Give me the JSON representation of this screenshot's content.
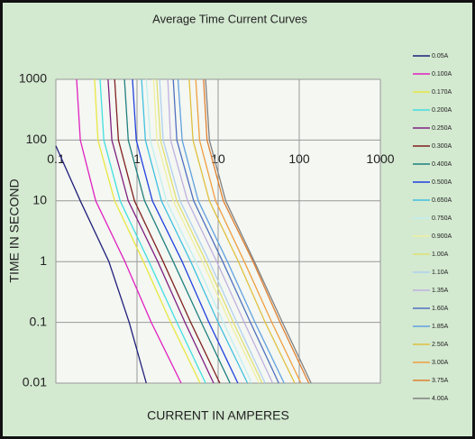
{
  "chart_data": {
    "type": "line",
    "title": "Average Time Current Curves",
    "x_label": "CURRENT IN AMPERES",
    "y_label": "TIME IN SECOND",
    "xscale": "log",
    "yscale": "log",
    "grid": true,
    "legend": "right",
    "xlim": [
      0.1,
      1000
    ],
    "ylim": [
      0.01,
      1000
    ],
    "xticks": [
      0.1,
      1,
      10,
      100,
      1000
    ],
    "yticks": [
      1000,
      100,
      10,
      1,
      0.1,
      0.01
    ],
    "series": [
      {
        "name": "0.05A",
        "color": "#1f1f7a",
        "x": [
          0.1,
          0.2,
          0.45,
          0.8,
          1.3
        ],
        "values": [
          80,
          10,
          1,
          0.1,
          0.01
        ]
      },
      {
        "name": "0.100A",
        "color": "#e020c0",
        "x": [
          0.18,
          0.2,
          0.31,
          0.71,
          1.5,
          3.5
        ],
        "values": [
          1000,
          100,
          10,
          1,
          0.1,
          0.01
        ]
      },
      {
        "name": "0.170A",
        "color": "#e8e840",
        "x": [
          0.3,
          0.33,
          0.53,
          1.2,
          2.6,
          6
        ],
        "values": [
          1000,
          100,
          10,
          1,
          0.1,
          0.01
        ]
      },
      {
        "name": "0.200A",
        "color": "#40e0e0",
        "x": [
          0.35,
          0.39,
          0.62,
          1.4,
          3.1,
          7
        ],
        "values": [
          1000,
          100,
          10,
          1,
          0.1,
          0.01
        ]
      },
      {
        "name": "0.250A",
        "color": "#802080",
        "x": [
          0.44,
          0.49,
          0.78,
          1.8,
          3.9,
          8.8
        ],
        "values": [
          1000,
          100,
          10,
          1,
          0.1,
          0.01
        ]
      },
      {
        "name": "0.300A",
        "color": "#802020",
        "x": [
          0.53,
          0.59,
          0.93,
          2.1,
          4.6,
          10.5
        ],
        "values": [
          1000,
          100,
          10,
          1,
          0.1,
          0.01
        ]
      },
      {
        "name": "0.400A",
        "color": "#208080",
        "x": [
          0.7,
          0.78,
          1.24,
          2.8,
          6.2,
          14
        ],
        "values": [
          1000,
          100,
          10,
          1,
          0.1,
          0.01
        ]
      },
      {
        "name": "0.500A",
        "color": "#2040e0",
        "x": [
          0.88,
          0.98,
          1.55,
          3.6,
          7.7,
          17.5
        ],
        "values": [
          1000,
          100,
          10,
          1,
          0.1,
          0.01
        ]
      },
      {
        "name": "0.650A",
        "color": "#40c0e0",
        "x": [
          1.14,
          1.27,
          2,
          4.6,
          10,
          23
        ],
        "values": [
          1000,
          100,
          10,
          1,
          0.1,
          0.01
        ]
      },
      {
        "name": "0.750A",
        "color": "#c0f0f0",
        "x": [
          1.3,
          1.46,
          2.3,
          5.3,
          11.6,
          26
        ],
        "values": [
          1000,
          100,
          10,
          1,
          0.1,
          0.01
        ]
      },
      {
        "name": "0.900A",
        "color": "#f0f0a0",
        "x": [
          1.6,
          1.76,
          2.8,
          6.4,
          13.9,
          32
        ],
        "values": [
          1000,
          100,
          10,
          1,
          0.1,
          0.01
        ]
      },
      {
        "name": "1.00A",
        "color": "#e0e070",
        "x": [
          1.75,
          1.95,
          3.1,
          7.1,
          15.4,
          35
        ],
        "values": [
          1000,
          100,
          10,
          1,
          0.1,
          0.01
        ]
      },
      {
        "name": "1.10A",
        "color": "#b0d0f0",
        "x": [
          1.9,
          2.1,
          3.4,
          7.8,
          17,
          38
        ],
        "values": [
          1000,
          100,
          10,
          1,
          0.1,
          0.01
        ]
      },
      {
        "name": "1.35A",
        "color": "#c0b0e0",
        "x": [
          2.4,
          2.6,
          4.2,
          9.6,
          21,
          47
        ],
        "values": [
          1000,
          100,
          10,
          1,
          0.1,
          0.01
        ]
      },
      {
        "name": "1.60A",
        "color": "#5070c0",
        "x": [
          2.8,
          3.1,
          5,
          11.4,
          25,
          56
        ],
        "values": [
          1000,
          100,
          10,
          1,
          0.1,
          0.01
        ]
      },
      {
        "name": "1.85A",
        "color": "#60a0e0",
        "x": [
          3.2,
          3.6,
          5.7,
          13,
          28.5,
          65
        ],
        "values": [
          1000,
          100,
          10,
          1,
          0.1,
          0.01
        ]
      },
      {
        "name": "2.50A",
        "color": "#e0c040",
        "x": [
          4.4,
          4.9,
          7.8,
          17.8,
          38,
          88
        ],
        "values": [
          1000,
          100,
          10,
          1,
          0.1,
          0.01
        ]
      },
      {
        "name": "3.00A",
        "color": "#f0a040",
        "x": [
          5.3,
          5.9,
          9.3,
          21,
          46,
          105
        ],
        "values": [
          1000,
          100,
          10,
          1,
          0.1,
          0.01
        ]
      },
      {
        "name": "3.75A",
        "color": "#e08030",
        "x": [
          6.6,
          7.3,
          11.6,
          27,
          58,
          131
        ],
        "values": [
          1000,
          100,
          10,
          1,
          0.1,
          0.01
        ]
      },
      {
        "name": "4.00A",
        "color": "#808080",
        "x": [
          7,
          7.8,
          12.4,
          28,
          62,
          140
        ],
        "values": [
          1000,
          100,
          10,
          1,
          0.1,
          0.01
        ]
      }
    ]
  }
}
